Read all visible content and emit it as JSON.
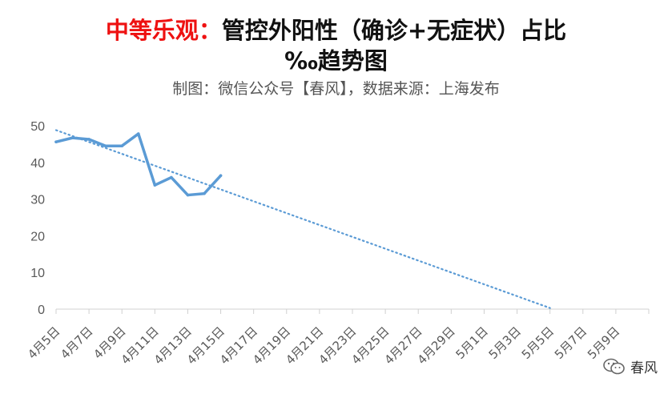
{
  "title": {
    "highlight": "中等乐观：",
    "rest": "管控外阳性（确诊+无症状）占比",
    "line2": "‰趋势图"
  },
  "subtitle": "制图：微信公众号【春风】，数据来源：上海发布",
  "watermark": {
    "text": "春风",
    "icon": "wechat-icon"
  },
  "colors": {
    "series": "#5b9bd5",
    "trend": "#5b9bd5",
    "title_highlight": "#ee1111"
  },
  "chart_data": {
    "type": "line",
    "title": "中等乐观：管控外阳性（确诊+无症状）占比‰趋势图",
    "xlabel": "",
    "ylabel": "",
    "ylim": [
      0,
      50
    ],
    "yticks": [
      0,
      10,
      20,
      30,
      40,
      50
    ],
    "grid": false,
    "legend": "none",
    "categories": [
      "4月5日",
      "4月7日",
      "4月9日",
      "4月11日",
      "4月13日",
      "4月15日",
      "4月17日",
      "4月19日",
      "4月21日",
      "4月23日",
      "4月25日",
      "4月27日",
      "4月29日",
      "5月1日",
      "5月3日",
      "5月5日",
      "5月7日",
      "5月9日"
    ],
    "series": [
      {
        "style": "solid",
        "x": [
          "4月5日",
          "4月6日",
          "4月7日",
          "4月8日",
          "4月9日",
          "4月10日",
          "4月11日",
          "4月12日",
          "4月13日",
          "4月14日",
          "4月15日"
        ],
        "values": [
          45.6,
          46.7,
          46.3,
          44.5,
          44.5,
          47.8,
          33.8,
          35.9,
          31.1,
          31.5,
          36.4
        ]
      },
      {
        "style": "dotted-trend",
        "x": [
          "4月5日",
          "5月5日"
        ],
        "values": [
          48.8,
          0.3
        ]
      }
    ]
  }
}
